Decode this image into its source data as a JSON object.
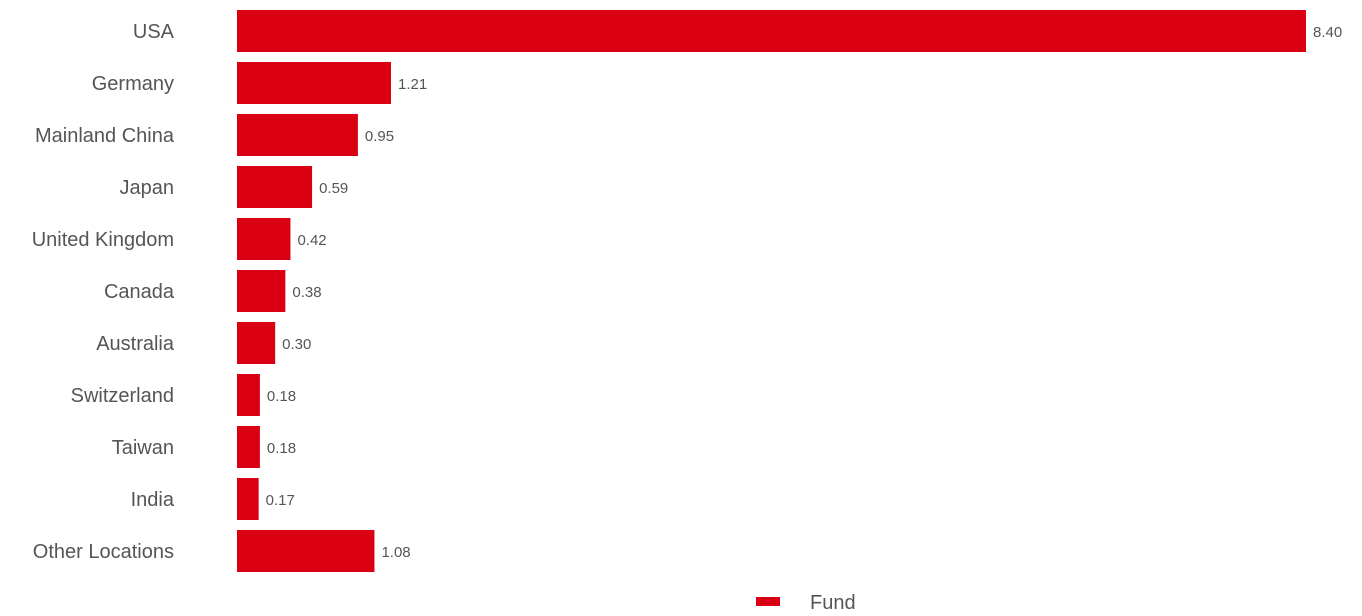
{
  "chart_data": {
    "type": "bar",
    "orientation": "horizontal",
    "categories": [
      "USA",
      "Germany",
      "Mainland China",
      "Japan",
      "United Kingdom",
      "Canada",
      "Australia",
      "Switzerland",
      "Taiwan",
      "India",
      "Other Locations"
    ],
    "series": [
      {
        "name": "Fund",
        "values": [
          8.4,
          1.21,
          0.95,
          0.59,
          0.42,
          0.38,
          0.3,
          0.18,
          0.18,
          0.17,
          1.08
        ],
        "value_labels": [
          "8.40",
          "1.21",
          "0.95",
          "0.59",
          "0.42",
          "0.38",
          "0.30",
          "0.18",
          "0.18",
          "0.17",
          "1.08"
        ],
        "color": "#db0011"
      }
    ],
    "title": "",
    "xlabel": "",
    "ylabel": "",
    "xlim": [
      0,
      8.4
    ],
    "grid": false,
    "legend": {
      "placement": "bottom-center",
      "entries": [
        "Fund"
      ]
    }
  }
}
